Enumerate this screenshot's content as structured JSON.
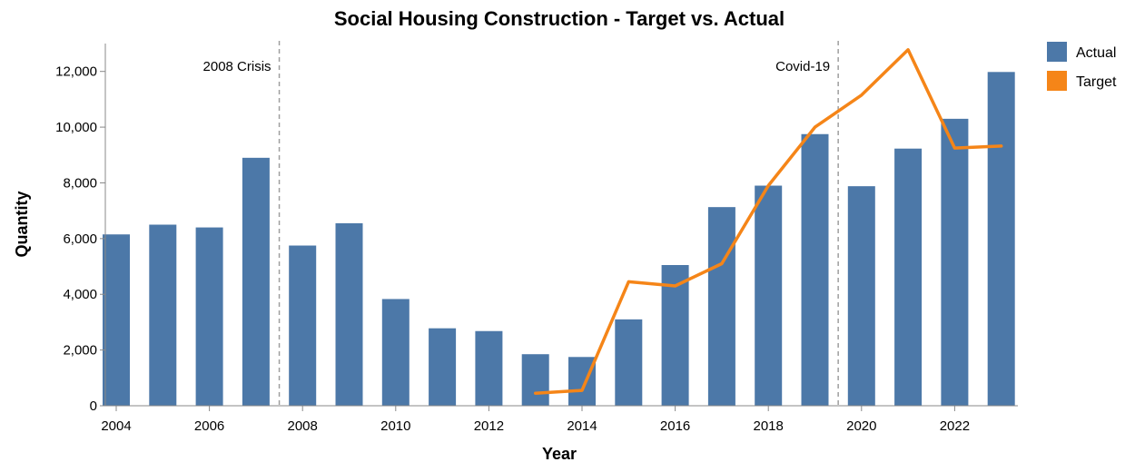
{
  "chart_data": {
    "type": "bar",
    "title": "Social Housing Construction - Target vs. Actual",
    "xlabel": "Year",
    "ylabel": "Quantity",
    "ylim": [
      0,
      13000
    ],
    "y_ticks": [
      0,
      2000,
      4000,
      6000,
      8000,
      10000,
      12000
    ],
    "y_tick_labels": [
      "0",
      "2,000",
      "4,000",
      "6,000",
      "8,000",
      "10,000",
      "12,000"
    ],
    "x_ticks": [
      2004,
      2006,
      2008,
      2010,
      2012,
      2014,
      2016,
      2018,
      2020,
      2022
    ],
    "x_tick_labels": [
      "2004",
      "2006",
      "2008",
      "2010",
      "2012",
      "2014",
      "2016",
      "2018",
      "2020",
      "2022"
    ],
    "grid": false,
    "legend_position": "top-right",
    "series": [
      {
        "name": "Actual",
        "type": "bar",
        "color": "#4c78a8",
        "x": [
          2004,
          2005,
          2006,
          2007,
          2008,
          2009,
          2010,
          2011,
          2012,
          2013,
          2014,
          2015,
          2016,
          2017,
          2018,
          2019,
          2020,
          2021,
          2022,
          2023
        ],
        "values": [
          6150,
          6500,
          6400,
          8900,
          5750,
          6550,
          3830,
          2780,
          2680,
          1850,
          1750,
          3100,
          5050,
          7130,
          7900,
          9750,
          7880,
          9230,
          10300,
          11980
        ]
      },
      {
        "name": "Target",
        "type": "line",
        "color": "#f58518",
        "x": [
          2013,
          2014,
          2015,
          2016,
          2017,
          2018,
          2019,
          2020,
          2021,
          2022,
          2023
        ],
        "values": [
          450,
          550,
          4450,
          4300,
          5100,
          7900,
          10000,
          11150,
          12780,
          9250,
          9320
        ]
      }
    ],
    "annotations": [
      {
        "x": 2007.5,
        "label": "2008 Crisis",
        "side": "left"
      },
      {
        "x": 2019.5,
        "label": "Covid-19",
        "side": "left"
      }
    ]
  }
}
